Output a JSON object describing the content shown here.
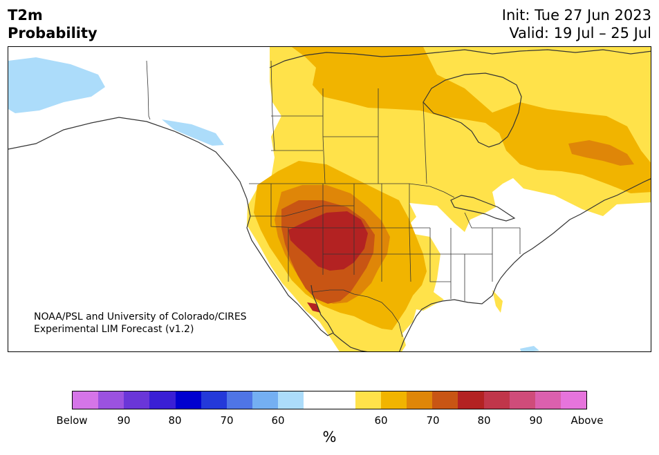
{
  "header": {
    "title_line1": "T2m",
    "title_line2": "Probability",
    "init": "Init: Tue 27 Jun 2023",
    "valid": "Valid: 19 Jul – 25 Jul"
  },
  "credit": {
    "line1": "NOAA/PSL and University of Colorado/CIRES",
    "line2": "Experimental LIM Forecast (v1.2)"
  },
  "colorbar": {
    "colors": [
      "#d575e8",
      "#9b52e0",
      "#6a36d8",
      "#3a1fd5",
      "#0000cf",
      "#2439d9",
      "#4f75e6",
      "#74aff2",
      "#acdcfa",
      "#ffffff",
      "#ffffff",
      "#ffe24a",
      "#f1b400",
      "#df8608",
      "#c85514",
      "#b32222",
      "#c0364a",
      "#cf4c7a",
      "#db60ae",
      "#e674dc"
    ],
    "tick_labels": [
      "Below",
      "90",
      "80",
      "70",
      "60",
      "60",
      "70",
      "80",
      "90",
      "Above"
    ],
    "unit_label": "%"
  },
  "map": {
    "colors": {
      "below_60": "#acdcfa",
      "above_50": "#ffe24a",
      "above_60": "#f1b400",
      "above_70": "#df8608",
      "above_75": "#c85514",
      "above_80": "#b32222",
      "border": "#333333"
    }
  }
}
